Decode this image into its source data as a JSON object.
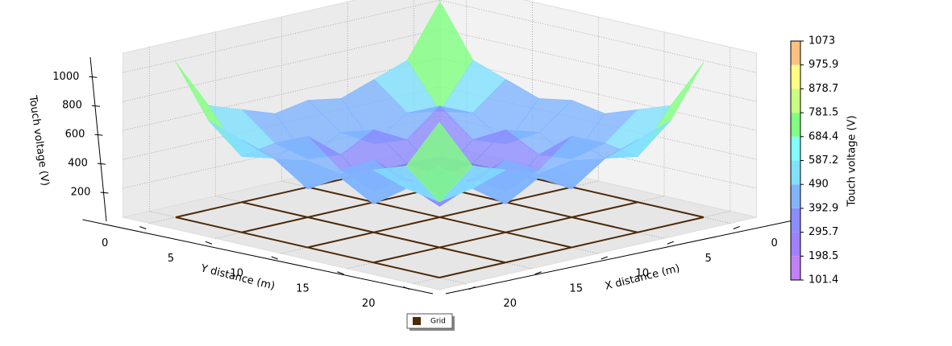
{
  "chart_data": {
    "type": "surface3d",
    "xlabel": "X distance (m)",
    "ylabel": "Y distance (m)",
    "zlabel": "Touch voltage (V)",
    "x": [
      0,
      2.5,
      5,
      7.5,
      10,
      12.5,
      15,
      17.5,
      20
    ],
    "y": [
      0,
      2.5,
      5,
      7.5,
      10,
      12.5,
      15,
      17.5,
      20
    ],
    "z": [
      [
        1073,
        720,
        640,
        560,
        600,
        560,
        640,
        720,
        1073
      ],
      [
        720,
        420,
        460,
        300,
        430,
        300,
        460,
        420,
        720
      ],
      [
        640,
        460,
        560,
        380,
        500,
        380,
        560,
        460,
        640
      ],
      [
        560,
        300,
        380,
        180,
        320,
        180,
        380,
        300,
        560
      ],
      [
        600,
        430,
        500,
        320,
        420,
        320,
        500,
        430,
        600
      ],
      [
        560,
        300,
        380,
        180,
        320,
        180,
        380,
        300,
        560
      ],
      [
        640,
        460,
        560,
        380,
        500,
        380,
        560,
        460,
        640
      ],
      [
        720,
        420,
        460,
        300,
        430,
        300,
        460,
        420,
        720
      ],
      [
        1073,
        720,
        640,
        560,
        600,
        560,
        640,
        720,
        1073
      ]
    ],
    "xlim": [
      -2,
      22
    ],
    "ylim": [
      -2,
      22
    ],
    "zlim": [
      0,
      1135
    ],
    "xticks": [
      0,
      5,
      10,
      15,
      20
    ],
    "yticks": [
      0,
      5,
      10,
      15,
      20
    ],
    "zticks": [
      200,
      400,
      600,
      800,
      1000
    ],
    "colorbar": {
      "label": "Touch voltage (V)",
      "ticks": [
        101.4,
        198.5,
        295.7,
        392.9,
        490,
        587.2,
        684.4,
        781.5,
        878.7,
        975.9,
        1073
      ],
      "colors": [
        "#c080ff",
        "#a080ff",
        "#8c8cff",
        "#80b4ff",
        "#80e0ff",
        "#80ffff",
        "#80ff80",
        "#c8ff80",
        "#ffff80",
        "#ffc080",
        "#ff8080"
      ]
    },
    "grid_series": {
      "name": "Grid",
      "color": "#4d2a0a",
      "positions": [
        0,
        5,
        10,
        15,
        20
      ]
    },
    "grid": true
  }
}
